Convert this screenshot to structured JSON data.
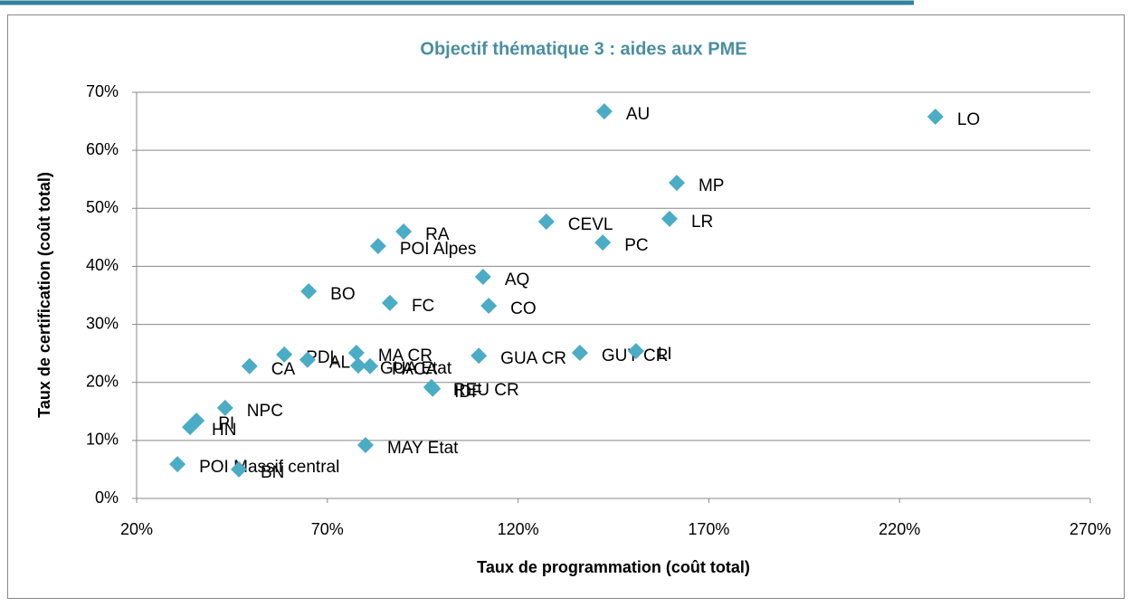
{
  "chart_data": {
    "type": "scatter",
    "title": "Objectif thématique 3 : aides aux PME",
    "x_label": "Taux de programmation (coût total)",
    "y_label": "Taux de certification (coût total)",
    "color": "#4bacc6",
    "grid": true,
    "points": [
      "AU",
      "LO",
      "MP",
      "LR",
      "CEVL",
      "PC",
      "RA",
      "POI Alpes",
      "AQ",
      "CO",
      "FC",
      "BO",
      "PDL",
      "MA CR",
      "PACA",
      "GUA Etat",
      "CA",
      "AL",
      "GUA CR",
      "GUY CR",
      "LI",
      "REU CR",
      "IDF",
      "MAY Etat",
      "NPC",
      "PI",
      "HN",
      "POI Massif central",
      "BN"
    ],
    "x": [
      142.6,
      229.4,
      161.6,
      159.7,
      127.4,
      142.2,
      90.0,
      83.3,
      110.8,
      112.3,
      86.4,
      65.1,
      58.7,
      77.6,
      81.2,
      78.1,
      49.6,
      64.8,
      109.7,
      136.2,
      150.9,
      97.3,
      97.6,
      80.0,
      43.2,
      35.7,
      34.0,
      30.7,
      46.8
    ],
    "y": [
      66.7,
      65.8,
      54.4,
      48.2,
      47.7,
      44.1,
      46.0,
      43.5,
      38.2,
      33.2,
      33.7,
      35.7,
      24.8,
      25.1,
      22.8,
      22.9,
      22.8,
      23.9,
      24.6,
      25.1,
      25.4,
      19.2,
      18.9,
      9.2,
      15.6,
      13.4,
      12.3,
      5.9,
      5.0
    ],
    "xlim": [
      20,
      270
    ],
    "xticks": [
      {
        "value": 20,
        "label": "20%"
      },
      {
        "value": 70,
        "label": "70%"
      },
      {
        "value": 120,
        "label": "120%"
      },
      {
        "value": 170,
        "label": "170%"
      },
      {
        "value": 220,
        "label": "220%"
      },
      {
        "value": 270,
        "label": "270%"
      }
    ],
    "ylim": [
      0,
      70
    ],
    "yticks": [
      {
        "value": 0,
        "label": "0%"
      },
      {
        "value": 10,
        "label": "10%"
      },
      {
        "value": 20,
        "label": "20%"
      },
      {
        "value": 30,
        "label": "30%"
      },
      {
        "value": 40,
        "label": "40%"
      },
      {
        "value": 50,
        "label": "50%"
      },
      {
        "value": 60,
        "label": "60%"
      },
      {
        "value": 70,
        "label": "70%"
      }
    ]
  }
}
